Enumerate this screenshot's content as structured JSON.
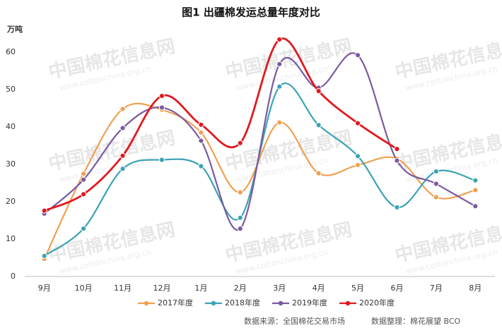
{
  "chart_data": {
    "type": "line",
    "title": "图1  出疆棉发运总量年度对比",
    "y_unit": "万吨",
    "categories": [
      "9月",
      "10月",
      "11月",
      "12月",
      "1月",
      "2月",
      "3月",
      "4月",
      "5月",
      "6月",
      "7月",
      "8月"
    ],
    "series": [
      {
        "name": "2017年度",
        "color": "#f0a050",
        "values": [
          4.7,
          27.5,
          44.8,
          44.6,
          38.5,
          22.5,
          41.2,
          27.6,
          29.8,
          31.5,
          21.2,
          23.1
        ]
      },
      {
        "name": "2018年度",
        "color": "#3ba3b5",
        "values": [
          5.5,
          12.8,
          28.8,
          31.2,
          29.5,
          15.7,
          50.8,
          40.5,
          32.2,
          18.5,
          28.1,
          25.7
        ]
      },
      {
        "name": "2019年度",
        "color": "#7b5aa0",
        "values": [
          16.8,
          25.9,
          39.7,
          45.2,
          36.3,
          12.8,
          56.8,
          50.5,
          59.2,
          31.0,
          24.8,
          18.8
        ]
      },
      {
        "name": "2020年度",
        "color": "#e0191e",
        "values": [
          17.6,
          22.0,
          32.3,
          48.3,
          40.6,
          35.7,
          63.4,
          49.6,
          41.0,
          34.1,
          null,
          null
        ]
      }
    ],
    "ylim": [
      0,
      60
    ],
    "yticks": [
      0,
      10,
      20,
      30,
      40,
      50,
      60
    ],
    "grid": false,
    "source": "数据来源：全国棉花交易市场",
    "compiled_by": "数据整理：棉花展望 BCO",
    "watermark": "中国棉花信息网",
    "watermark_url": "www.cottonchina.org.cn"
  }
}
